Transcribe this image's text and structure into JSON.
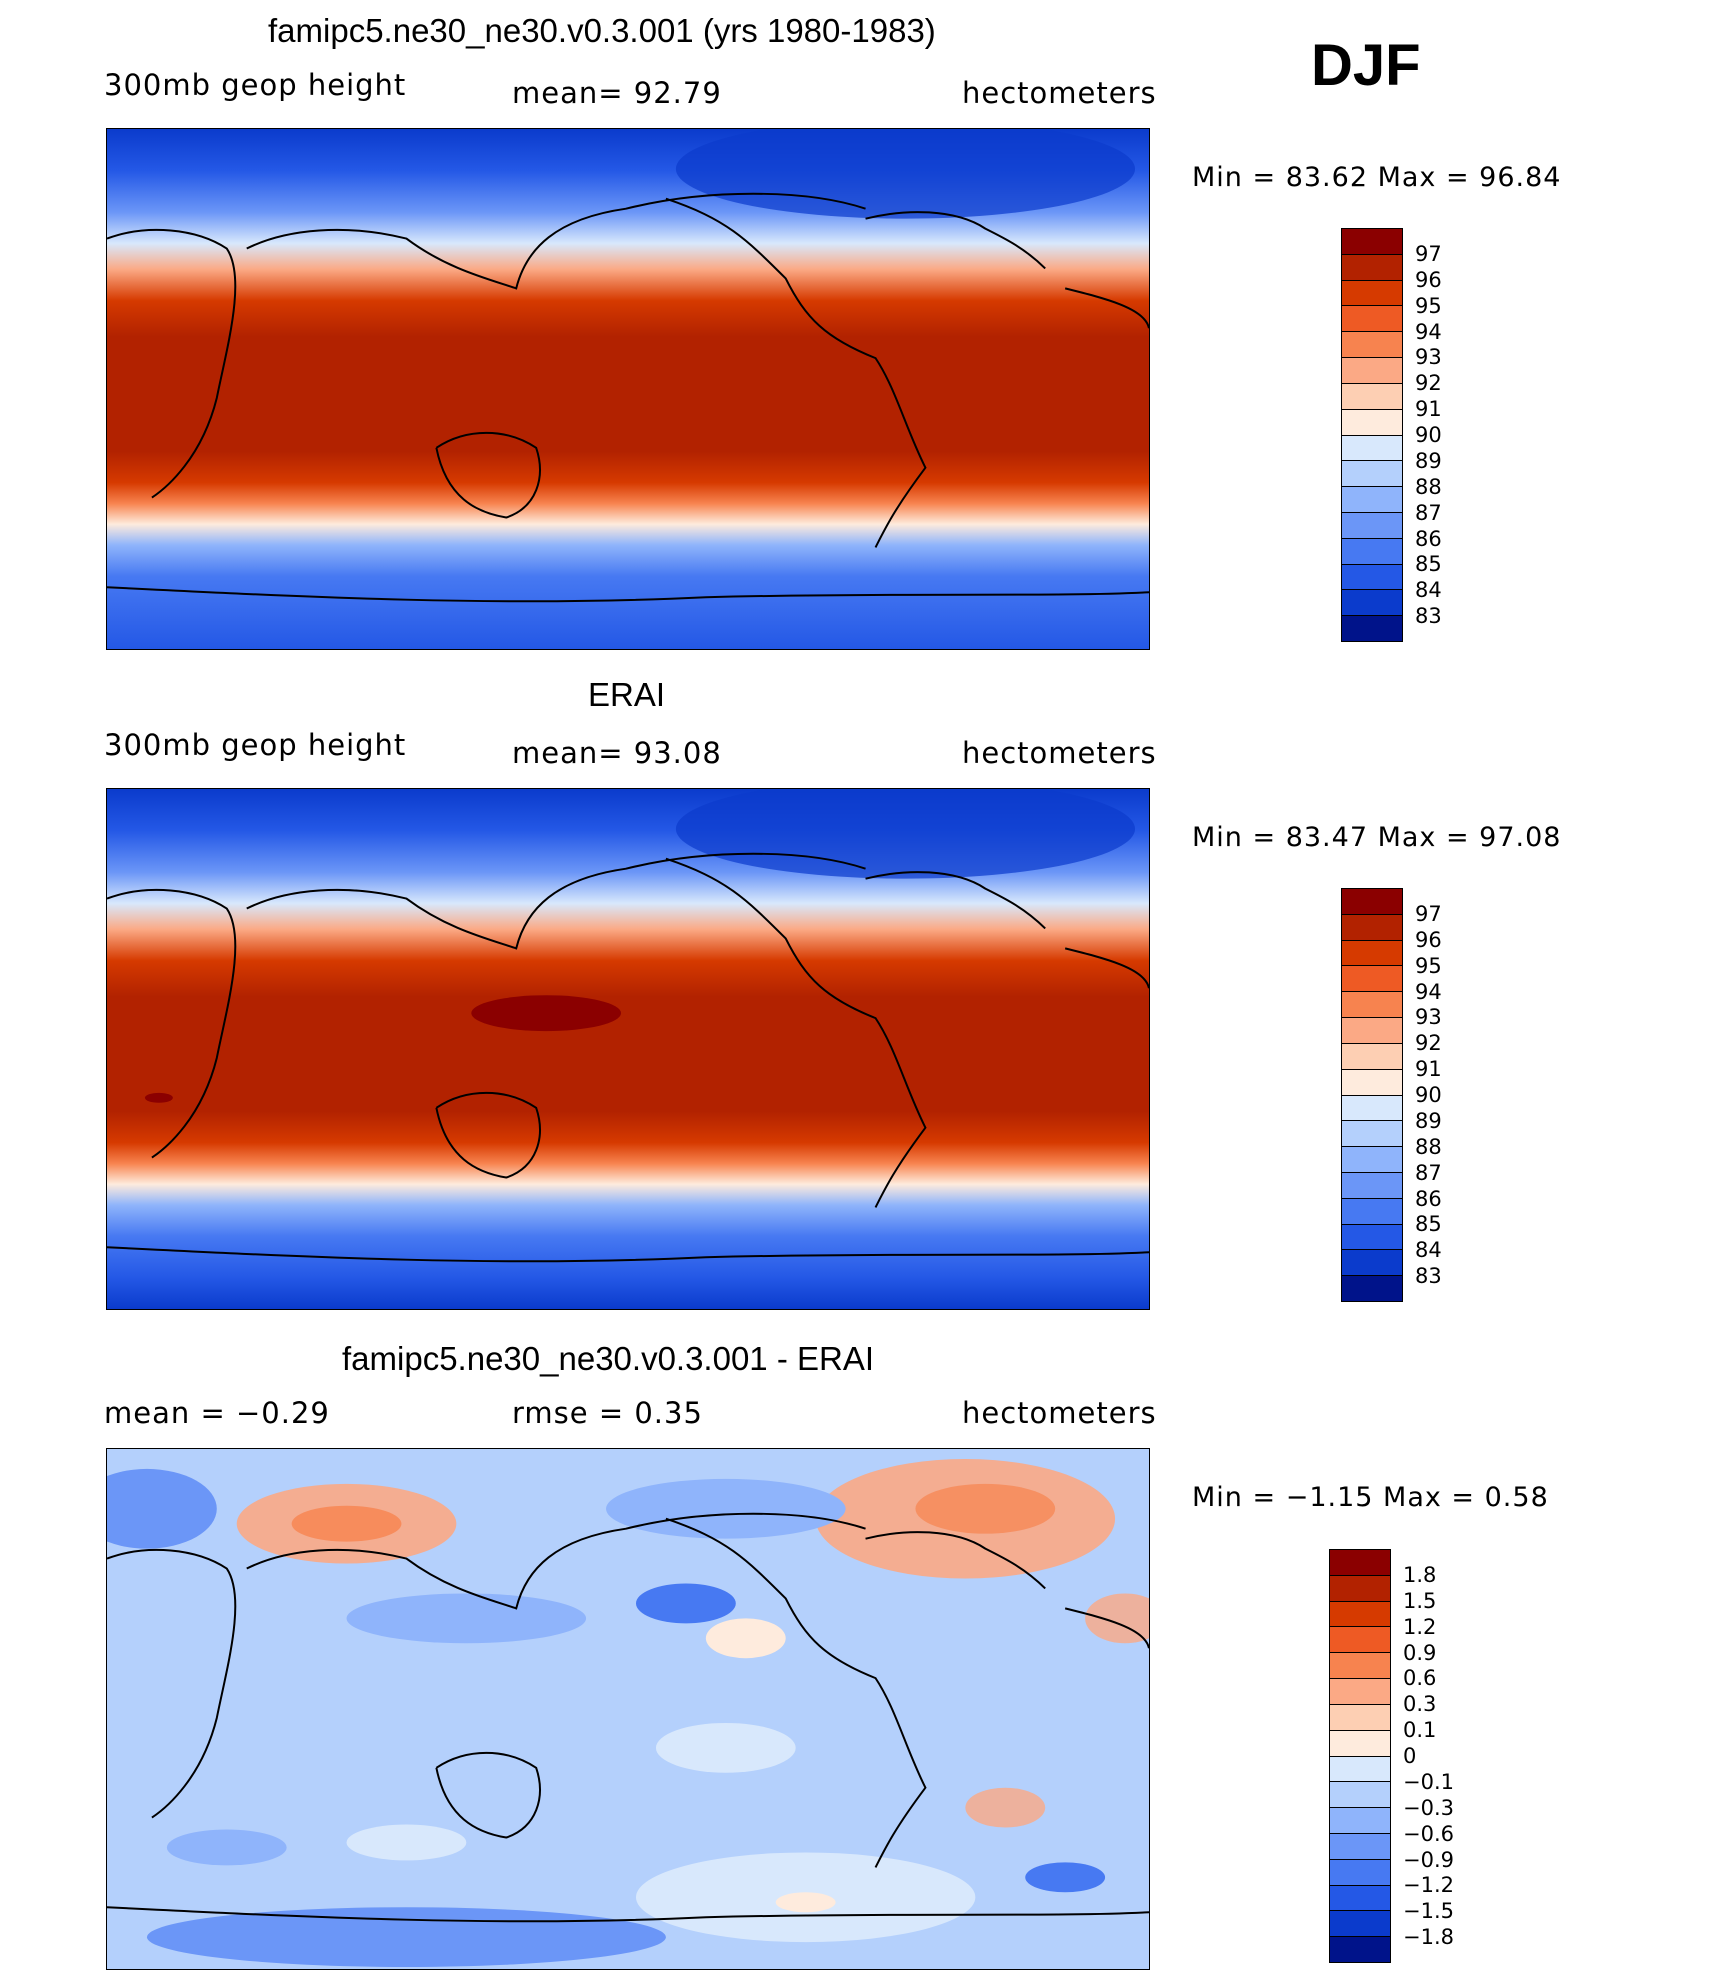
{
  "season": "DJF",
  "panels": [
    {
      "title": "famipc5.ne30_ne30.v0.3.001 (yrs 1980-1983)",
      "left_label": "300mb geop height",
      "center_label": "mean=   92.79",
      "right_label": "hectometers",
      "minmax": "Min =   83.62  Max =   96.84",
      "colorbar_levels": [
        "97",
        "96",
        "95",
        "94",
        "93",
        "92",
        "91",
        "90",
        "89",
        "88",
        "87",
        "86",
        "85",
        "84",
        "83"
      ],
      "colorbar_colors": [
        "#8b0000",
        "#b22200",
        "#d63a00",
        "#ee5a24",
        "#f7834f",
        "#fba985",
        "#fdcfb3",
        "#feebdd",
        "#d8e8fc",
        "#b4d0fc",
        "#8fb4fb",
        "#6b96f7",
        "#4779f2",
        "#2458e6",
        "#0b3bcc",
        "#00138a"
      ]
    },
    {
      "title": "ERAI",
      "left_label": "300mb geop height",
      "center_label": "mean=   93.08",
      "right_label": "hectometers",
      "minmax": "Min =   83.47  Max =   97.08",
      "colorbar_levels": [
        "97",
        "96",
        "95",
        "94",
        "93",
        "92",
        "91",
        "90",
        "89",
        "88",
        "87",
        "86",
        "85",
        "84",
        "83"
      ],
      "colorbar_colors": [
        "#8b0000",
        "#b22200",
        "#d63a00",
        "#ee5a24",
        "#f7834f",
        "#fba985",
        "#fdcfb3",
        "#feebdd",
        "#d8e8fc",
        "#b4d0fc",
        "#8fb4fb",
        "#6b96f7",
        "#4779f2",
        "#2458e6",
        "#0b3bcc",
        "#00138a"
      ]
    },
    {
      "title": "famipc5.ne30_ne30.v0.3.001 - ERAI",
      "left_label": "mean =    −0.29",
      "center_label": "rmse =     0.35",
      "right_label": "hectometers",
      "minmax": "Min =   −1.15  Max =     0.58",
      "colorbar_levels": [
        "1.8",
        "1.5",
        "1.2",
        "0.9",
        "0.6",
        "0.3",
        "0.1",
        "0",
        "−0.1",
        "−0.3",
        "−0.6",
        "−0.9",
        "−1.2",
        "−1.5",
        "−1.8"
      ],
      "colorbar_colors": [
        "#8b0000",
        "#b22200",
        "#d63a00",
        "#ee5a24",
        "#f7834f",
        "#fba985",
        "#fdcfb3",
        "#feebdd",
        "#d8e8fc",
        "#b4d0fc",
        "#8fb4fb",
        "#6b96f7",
        "#4779f2",
        "#2458e6",
        "#0b3bcc",
        "#00138a"
      ]
    }
  ]
}
